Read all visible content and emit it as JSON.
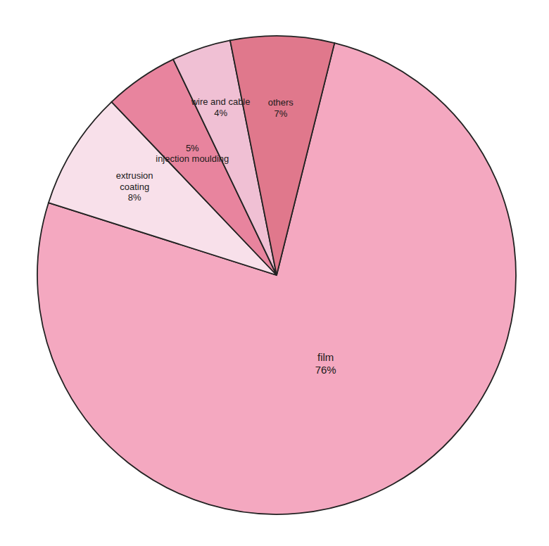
{
  "chart_data": {
    "type": "pie",
    "categories": [
      "film",
      "extrusion coating",
      "injection moulding",
      "wire and cable",
      "others"
    ],
    "values": [
      76,
      8,
      5,
      4,
      7
    ],
    "colors": [
      "#f4a8c0",
      "#f8e0ea",
      "#e8849e",
      "#f0c0d4",
      "#e0788c"
    ],
    "data_labels": true,
    "value_labels": [
      "film\n76%",
      "extrusion\ncoating\n8%",
      "5%\ninjection moulding",
      "wire and cable\n4%",
      "others\n7%"
    ]
  }
}
